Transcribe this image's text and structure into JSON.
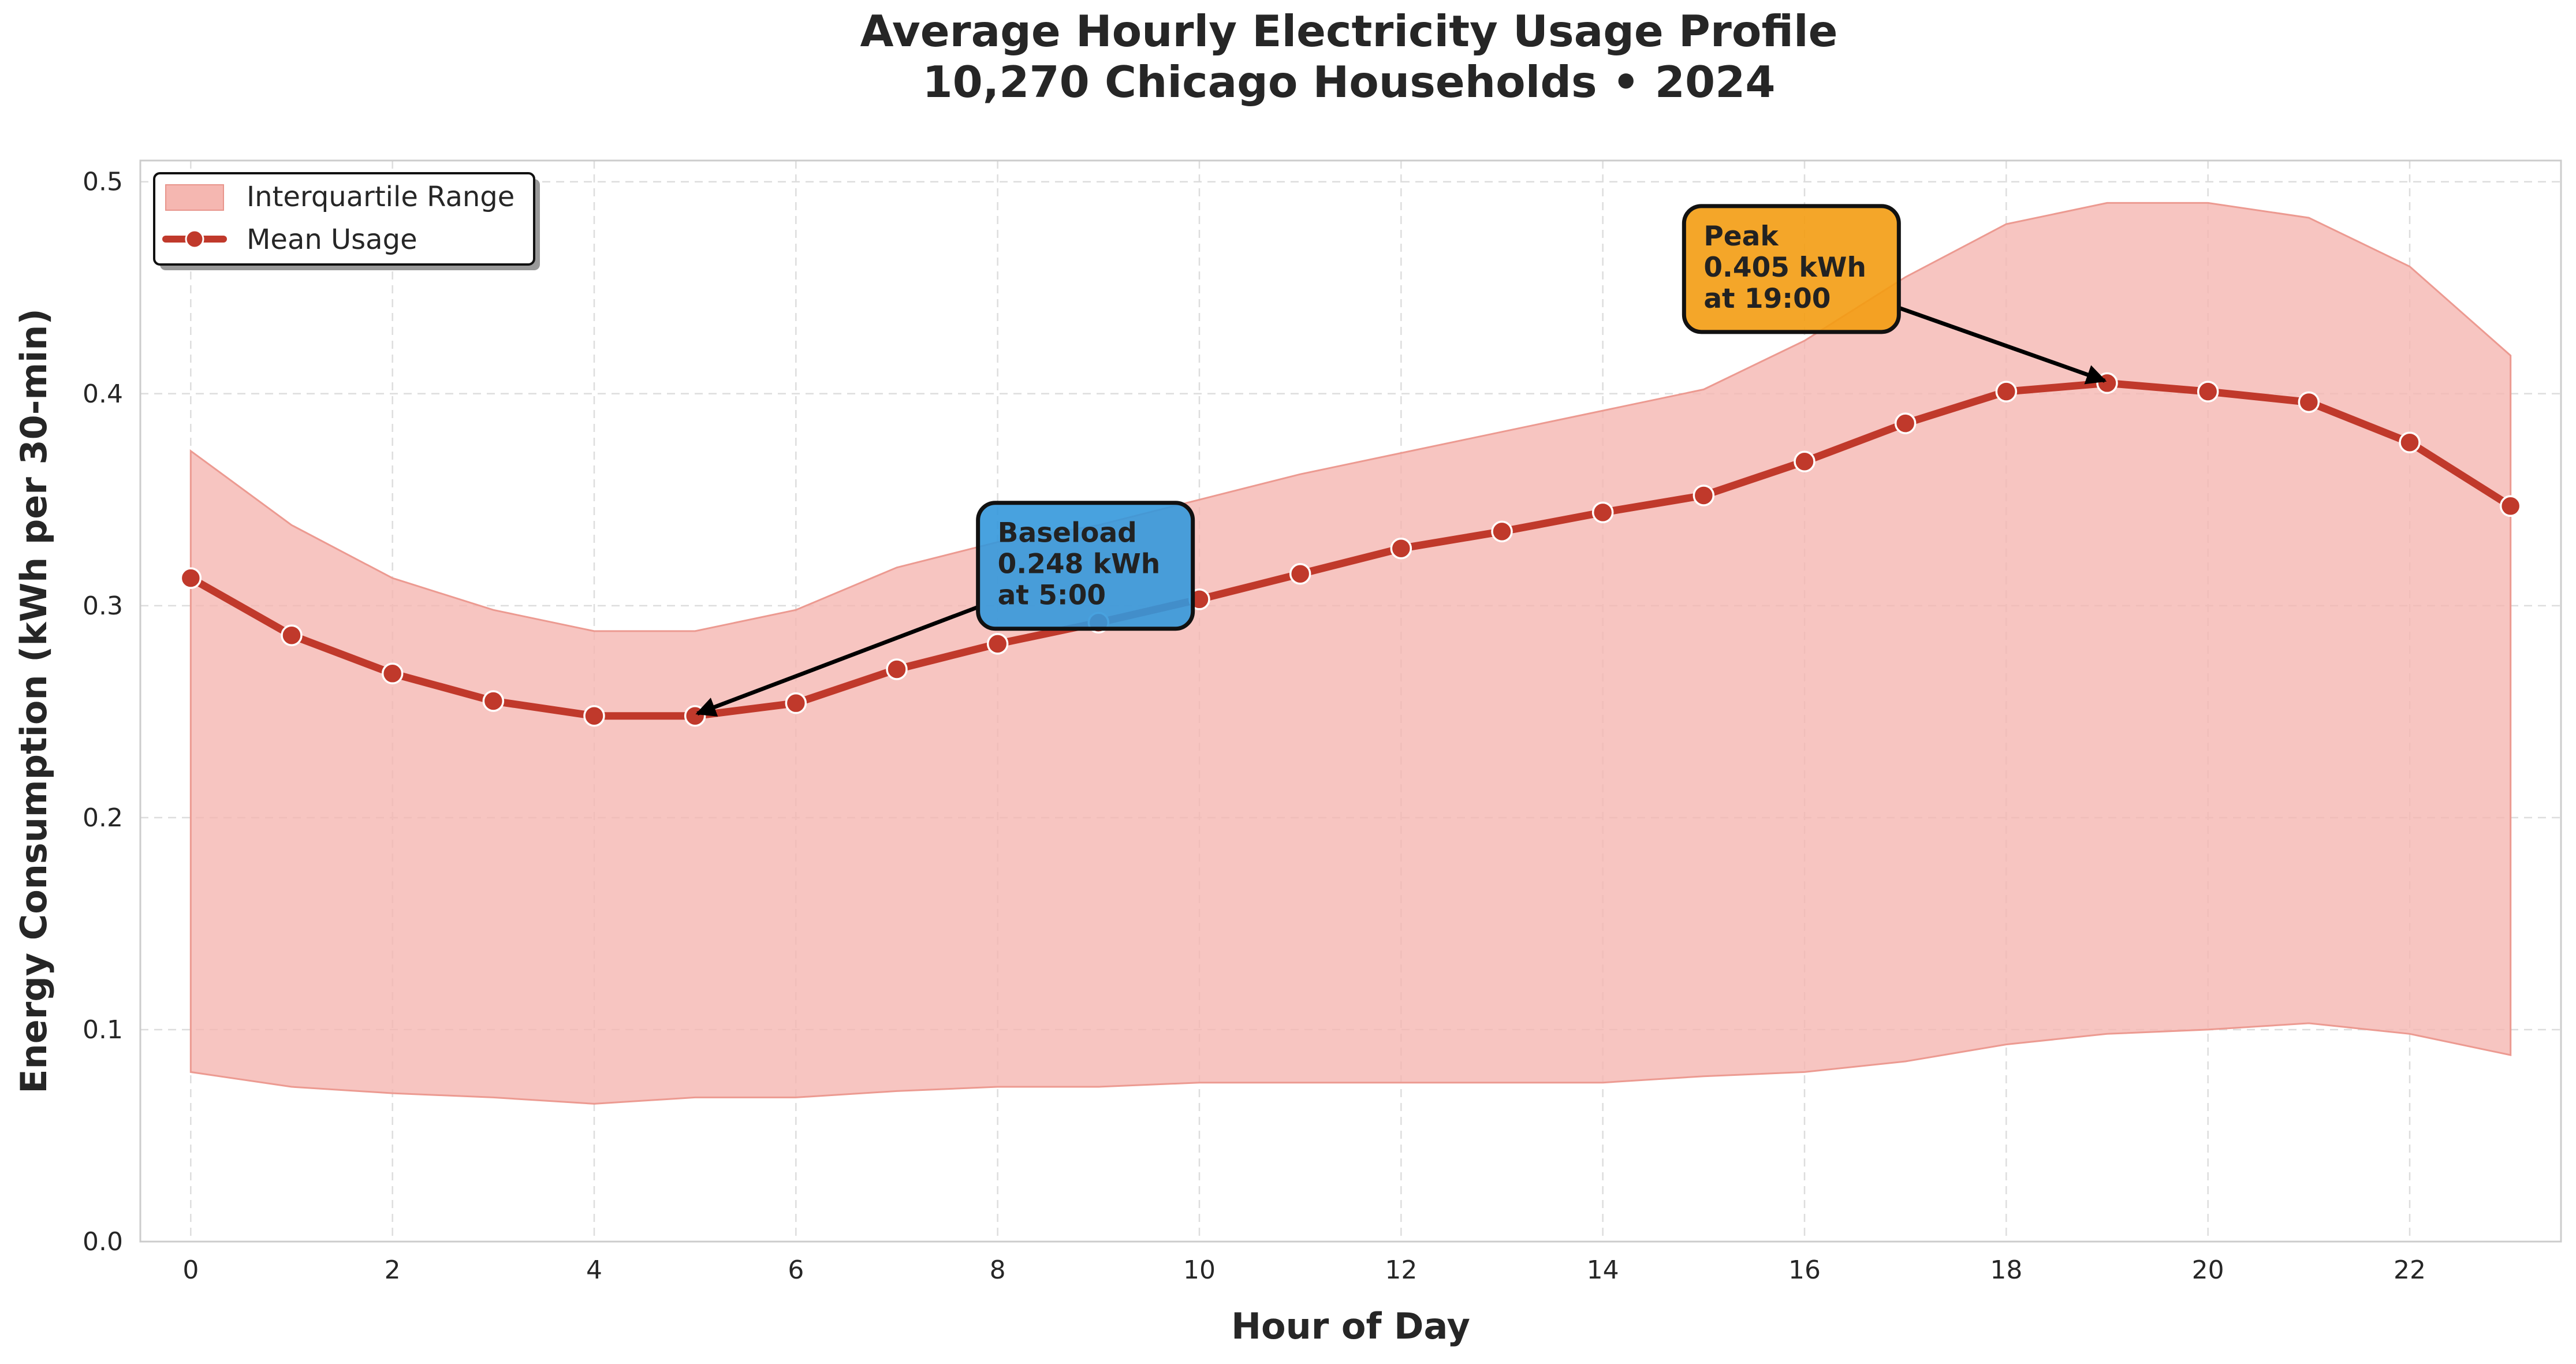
{
  "chart_data": {
    "type": "line",
    "title": "Average Hourly Electricity Usage Profile",
    "subtitle": "10,270 Chicago Households • 2024",
    "xlabel": "Hour of Day",
    "ylabel": "Energy Consumption (kWh per 30-min)",
    "xlim": [
      -0.5,
      23.5
    ],
    "ylim": [
      0,
      0.51
    ],
    "xticks": [
      0,
      2,
      4,
      6,
      8,
      10,
      12,
      14,
      16,
      18,
      20,
      22
    ],
    "xtick_labels": [
      "0",
      "2",
      "4",
      "6",
      "8",
      "10",
      "12",
      "14",
      "16",
      "18",
      "20",
      "22"
    ],
    "yticks": [
      0,
      0.1,
      0.2,
      0.3,
      0.4,
      0.5
    ],
    "ytick_labels": [
      "0.0",
      "0.1",
      "0.2",
      "0.3",
      "0.4",
      "0.5"
    ],
    "grid": true,
    "legend_position": "top-left",
    "x": [
      0,
      1,
      2,
      3,
      4,
      5,
      6,
      7,
      8,
      9,
      10,
      11,
      12,
      13,
      14,
      15,
      16,
      17,
      18,
      19,
      20,
      21,
      22,
      23
    ],
    "series": [
      {
        "name": "Mean Usage",
        "kind": "line",
        "color": "#c0392b",
        "values": [
          0.313,
          0.286,
          0.268,
          0.255,
          0.248,
          0.248,
          0.254,
          0.27,
          0.282,
          0.292,
          0.303,
          0.315,
          0.327,
          0.335,
          0.344,
          0.352,
          0.368,
          0.386,
          0.401,
          0.405,
          0.401,
          0.396,
          0.377,
          0.347
        ]
      },
      {
        "name": "Interquartile Range",
        "kind": "band",
        "color": "#f5b7b1",
        "lower": [
          0.08,
          0.073,
          0.07,
          0.068,
          0.065,
          0.068,
          0.068,
          0.071,
          0.073,
          0.073,
          0.075,
          0.075,
          0.075,
          0.075,
          0.075,
          0.078,
          0.08,
          0.085,
          0.093,
          0.098,
          0.1,
          0.103,
          0.098,
          0.088
        ],
        "upper": [
          0.373,
          0.338,
          0.313,
          0.298,
          0.288,
          0.288,
          0.298,
          0.318,
          0.33,
          0.338,
          0.35,
          0.362,
          0.372,
          0.382,
          0.392,
          0.402,
          0.425,
          0.455,
          0.48,
          0.49,
          0.49,
          0.483,
          0.46,
          0.418
        ]
      }
    ],
    "annotations": [
      {
        "lines": [
          "Baseload",
          "0.248 kWh",
          "at 5:00"
        ],
        "point_x": 5,
        "point_y": 0.248,
        "box_x": 8,
        "box_y": 0.33,
        "color": "#3498db"
      },
      {
        "lines": [
          "Peak",
          "0.405 kWh",
          "at 19:00"
        ],
        "point_x": 19,
        "point_y": 0.405,
        "box_x": 15,
        "box_y": 0.47,
        "color": "#f39c12"
      }
    ]
  }
}
